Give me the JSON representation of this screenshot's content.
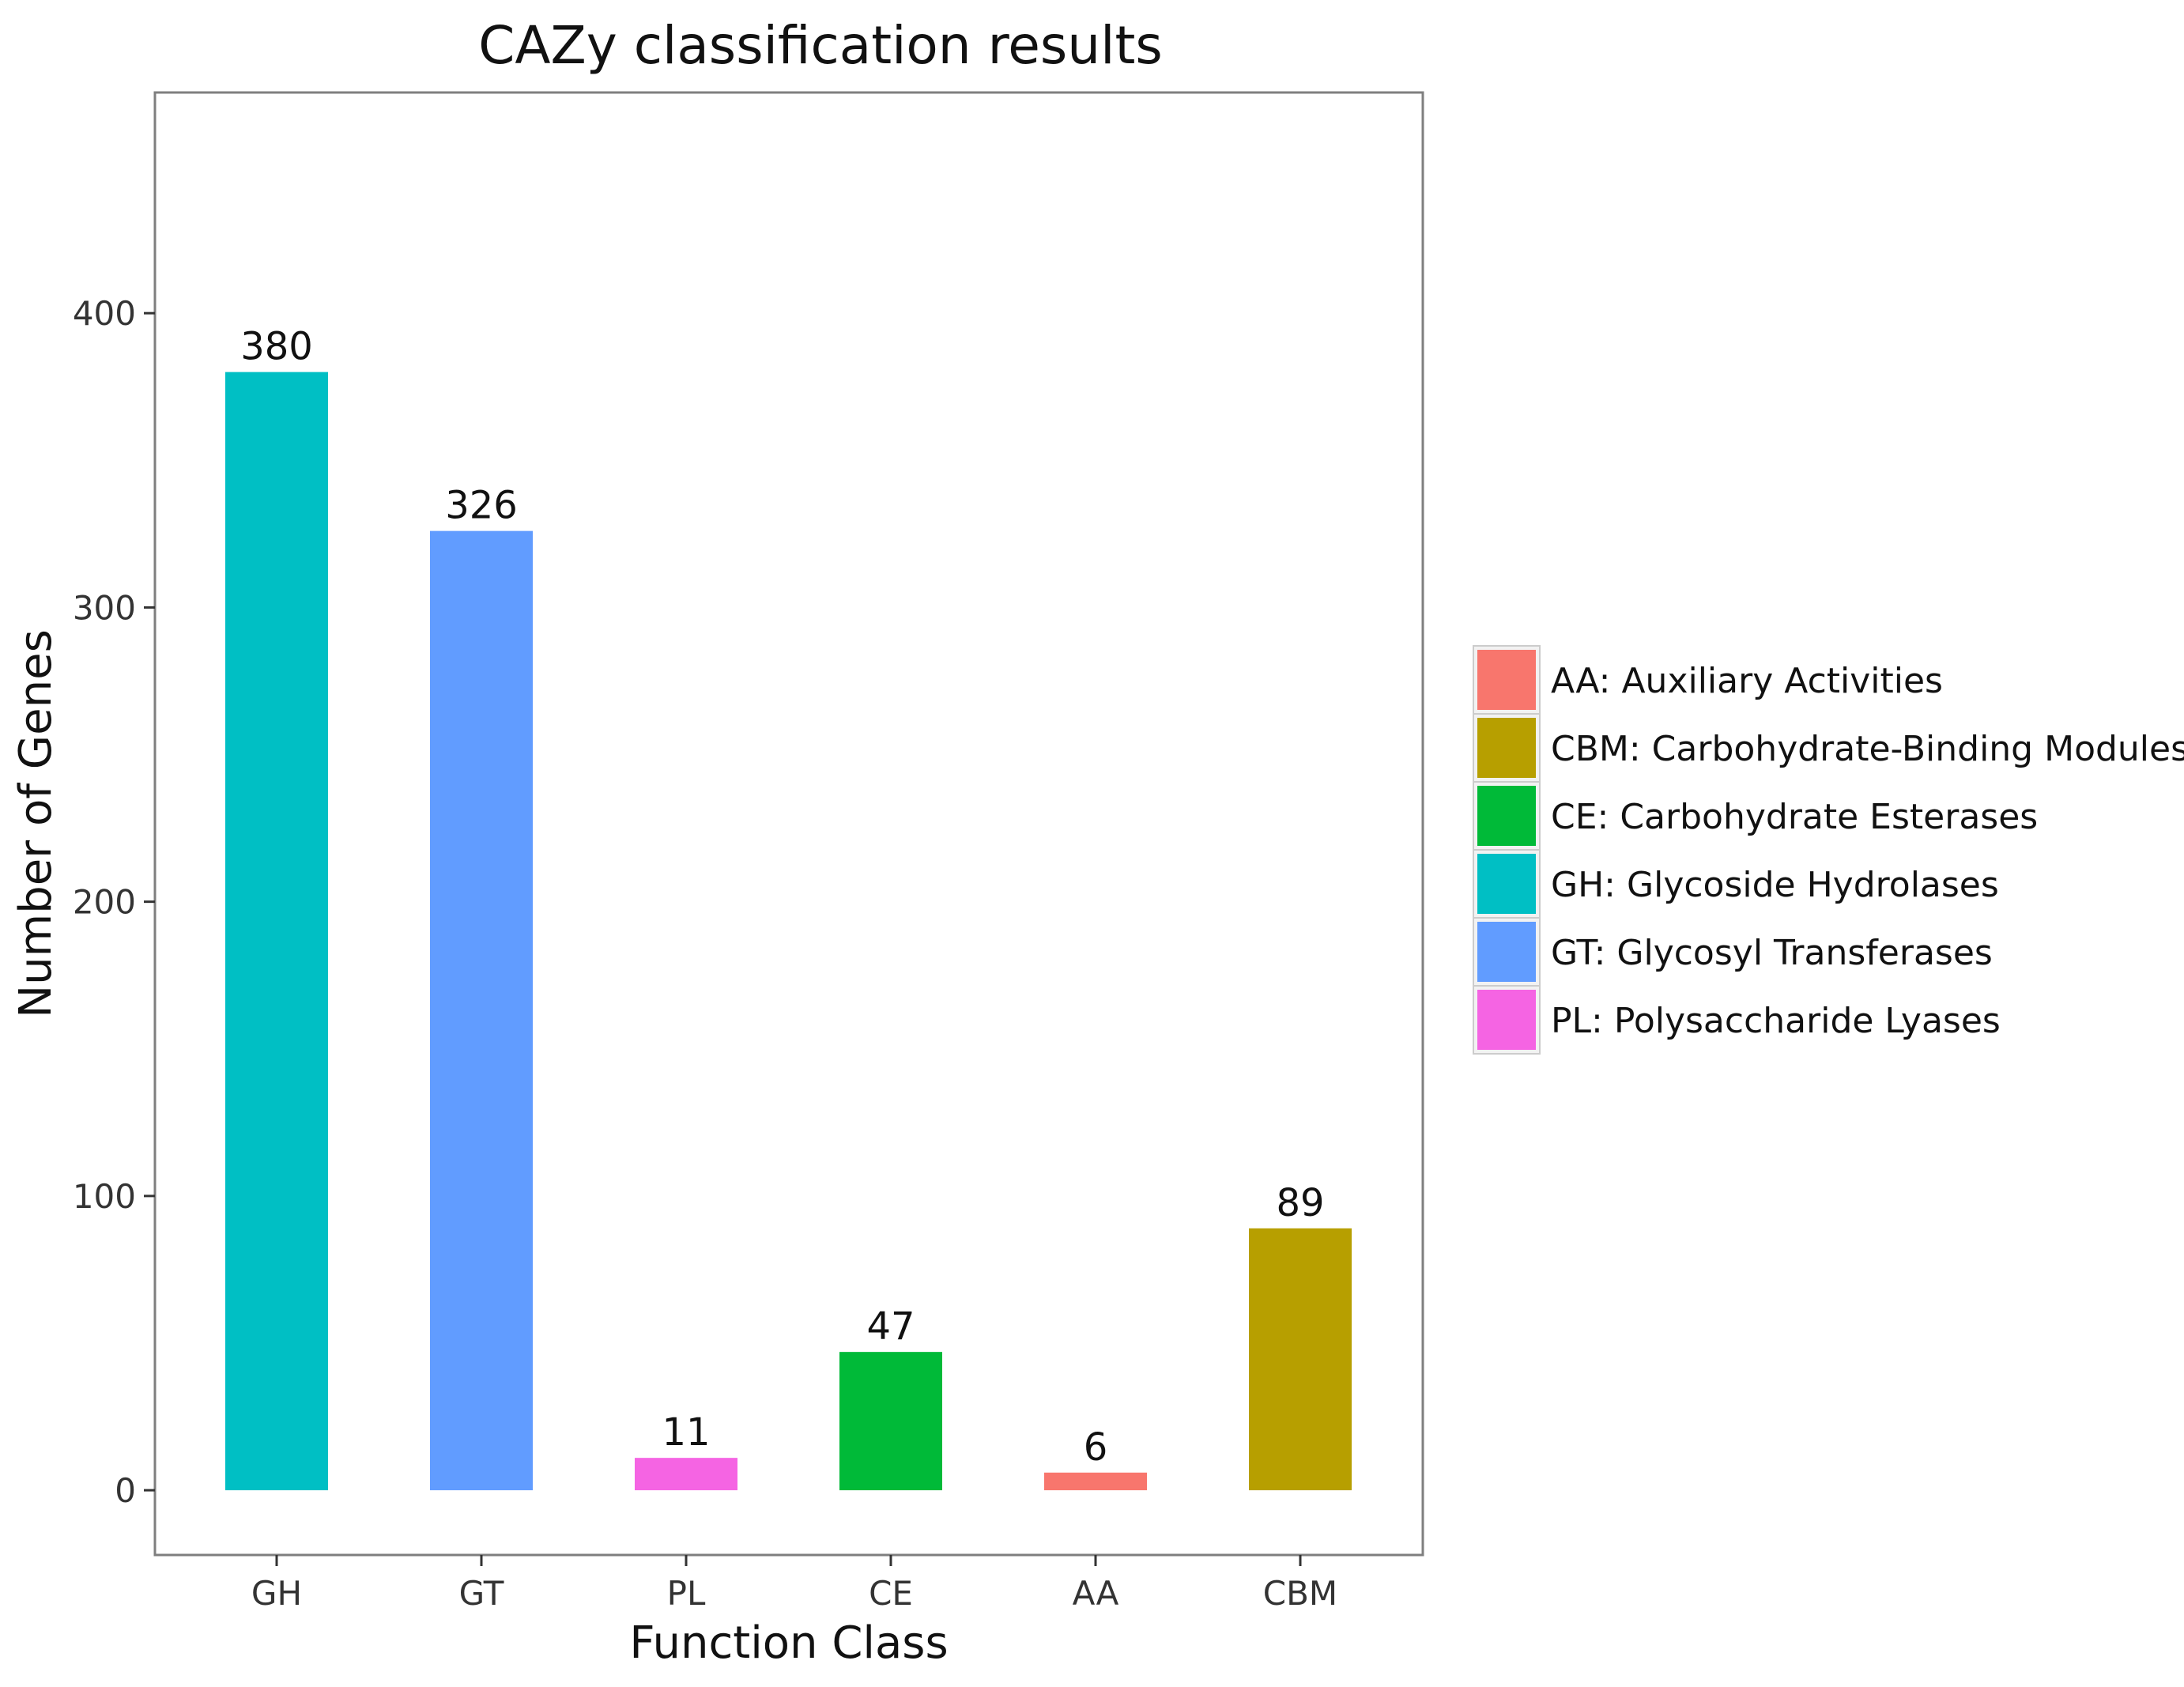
{
  "chart_data": {
    "type": "bar",
    "title": "CAZy classification results",
    "xlabel": "Function Class",
    "ylabel": "Number of Genes",
    "categories": [
      "GH",
      "GT",
      "PL",
      "CE",
      "AA",
      "CBM"
    ],
    "values": [
      380,
      326,
      11,
      47,
      6,
      89
    ],
    "bar_colors": [
      "#00BFC4",
      "#619CFF",
      "#F564E3",
      "#00BA38",
      "#F8766D",
      "#B79F00"
    ],
    "data_labels": [
      "380",
      "326",
      "11",
      "47",
      "6",
      "89"
    ],
    "ylim": [
      -22,
      475
    ],
    "yticks": [
      0,
      100,
      200,
      300,
      400
    ],
    "ytick_labels": [
      "0",
      "100",
      "200",
      "300",
      "400"
    ],
    "grid": false,
    "legend": {
      "placement": "right",
      "items": [
        {
          "key": "AA",
          "label": "AA: Auxiliary Activities",
          "color": "#F8766D"
        },
        {
          "key": "CBM",
          "label": "CBM: Carbohydrate-Binding Modules",
          "color": "#B79F00"
        },
        {
          "key": "CE",
          "label": "CE: Carbohydrate Esterases",
          "color": "#00BA38"
        },
        {
          "key": "GH",
          "label": "GH: Glycoside Hydrolases",
          "color": "#00BFC4"
        },
        {
          "key": "GT",
          "label": "GT: Glycosyl Transferases",
          "color": "#619CFF"
        },
        {
          "key": "PL",
          "label": "PL: Polysaccharide Lyases",
          "color": "#F564E3"
        }
      ]
    }
  }
}
